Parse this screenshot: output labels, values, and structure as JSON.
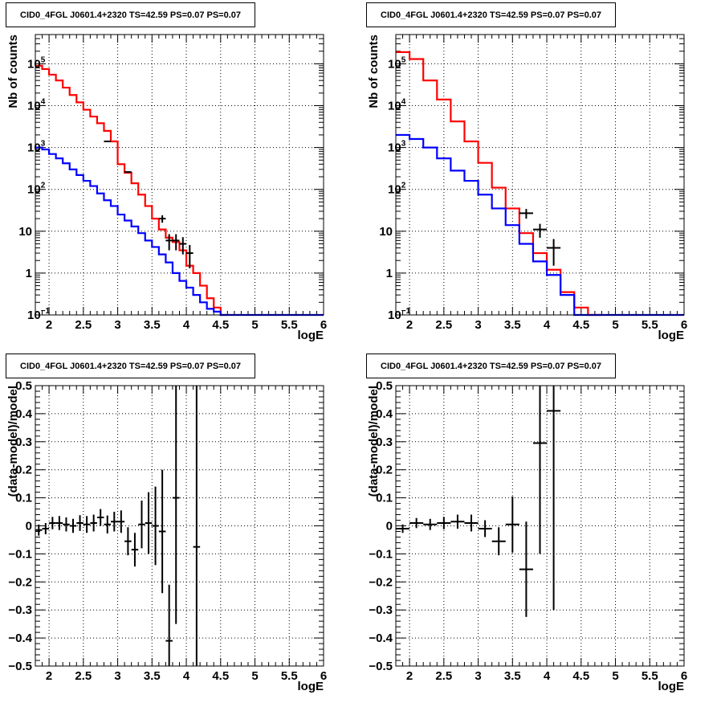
{
  "chart_data": [
    {
      "type": "line",
      "title": "CID0_4FGL J0601.4+2320 TS=42.59 PS=0.07 PS=0.07",
      "xlabel": "logE",
      "ylabel": "Nb of counts",
      "xlim": [
        1.8,
        6
      ],
      "ylim": [
        0.1,
        500000
      ],
      "ylog": true,
      "grid": true,
      "x_ticks": [
        "2",
        "2.5",
        "3",
        "3.5",
        "4",
        "4.5",
        "5",
        "5.5",
        "6"
      ],
      "y_ticks": [
        {
          "v": 0.1,
          "base": "10",
          "exp": "−1"
        },
        {
          "v": 1,
          "base": "1",
          "exp": ""
        },
        {
          "v": 10,
          "base": "10",
          "exp": ""
        },
        {
          "v": 100,
          "base": "10",
          "exp": "2"
        },
        {
          "v": 1000,
          "base": "10",
          "exp": "3"
        },
        {
          "v": 10000,
          "base": "10",
          "exp": "4"
        },
        {
          "v": 100000,
          "base": "10",
          "exp": "5"
        }
      ],
      "series": [
        {
          "color": "#ff0000",
          "kind": "step",
          "edges": [
            1.8,
            1.9,
            2.0,
            2.1,
            2.2,
            2.3,
            2.4,
            2.5,
            2.6,
            2.7,
            2.8,
            2.9,
            3.0,
            3.1,
            3.2,
            3.3,
            3.4,
            3.5,
            3.6,
            3.7,
            3.8,
            3.9,
            4.0,
            4.1,
            4.2,
            4.3,
            4.4,
            4.5,
            4.6
          ],
          "values": [
            90000,
            75000,
            55000,
            40000,
            27000,
            18000,
            12000,
            8000,
            5500,
            3800,
            2500,
            1400,
            400,
            250,
            140,
            75,
            40,
            20,
            11,
            7,
            5.5,
            3.5,
            1.5,
            1,
            0.5,
            0.25,
            0.15,
            0.1
          ]
        },
        {
          "color": "#0000ff",
          "kind": "step",
          "edges": [
            1.8,
            1.9,
            2.0,
            2.1,
            2.2,
            2.3,
            2.4,
            2.5,
            2.6,
            2.7,
            2.8,
            2.9,
            3.0,
            3.1,
            3.2,
            3.3,
            3.4,
            3.5,
            3.6,
            3.7,
            3.8,
            3.9,
            4.0,
            4.1,
            4.2,
            4.3,
            4.4,
            4.5,
            6.0
          ],
          "values": [
            1000,
            900,
            700,
            550,
            420,
            300,
            220,
            160,
            120,
            80,
            55,
            40,
            25,
            18,
            13,
            9,
            6,
            4.2,
            2.8,
            1.8,
            1,
            0.65,
            0.45,
            0.3,
            0.2,
            0.14,
            0.12,
            0.1
          ]
        },
        {
          "color": "#000000",
          "kind": "points",
          "points": [
            [
              2.85,
              1400,
              0.05,
              1.3
            ],
            [
              3.15,
              260,
              0.05,
              0.5
            ],
            [
              3.65,
              20,
              0.05,
              4
            ],
            [
              3.75,
              6,
              0.05,
              2.5
            ],
            [
              3.85,
              6,
              0.05,
              2.5
            ],
            [
              3.95,
              5,
              0.05,
              2.2
            ],
            [
              4.05,
              3,
              0.05,
              1.7
            ]
          ]
        }
      ]
    },
    {
      "type": "line",
      "title": "CID0_4FGL J0601.4+2320 TS=42.59 PS=0.07 PS=0.07",
      "xlabel": "logE",
      "ylabel": "Nb of counts",
      "xlim": [
        1.8,
        6
      ],
      "ylim": [
        0.1,
        500000
      ],
      "ylog": true,
      "grid": true,
      "x_ticks": [
        "2",
        "2.5",
        "3",
        "3.5",
        "4",
        "4.5",
        "5",
        "5.5",
        "6"
      ],
      "y_ticks": [
        {
          "v": 0.1,
          "base": "10",
          "exp": "−1"
        },
        {
          "v": 1,
          "base": "1",
          "exp": ""
        },
        {
          "v": 10,
          "base": "10",
          "exp": ""
        },
        {
          "v": 100,
          "base": "10",
          "exp": "2"
        },
        {
          "v": 1000,
          "base": "10",
          "exp": "3"
        },
        {
          "v": 10000,
          "base": "10",
          "exp": "4"
        },
        {
          "v": 100000,
          "base": "10",
          "exp": "5"
        }
      ],
      "series": [
        {
          "color": "#ff0000",
          "kind": "step",
          "edges": [
            1.8,
            2.0,
            2.2,
            2.4,
            2.6,
            2.8,
            3.0,
            3.2,
            3.4,
            3.6,
            3.8,
            4.0,
            4.2,
            4.4,
            4.6,
            4.8
          ],
          "values": [
            190000,
            130000,
            40000,
            14000,
            4200,
            1400,
            430,
            110,
            35,
            9,
            3,
            1.2,
            0.35,
            0.15,
            0.1
          ]
        },
        {
          "color": "#0000ff",
          "kind": "step",
          "edges": [
            1.8,
            2.0,
            2.2,
            2.4,
            2.6,
            2.8,
            3.0,
            3.2,
            3.4,
            3.6,
            3.8,
            4.0,
            4.2,
            4.4,
            6.0
          ],
          "values": [
            2000,
            1600,
            1000,
            550,
            280,
            160,
            75,
            35,
            14,
            5,
            1.9,
            0.9,
            0.3,
            0.1
          ]
        },
        {
          "color": "#000000",
          "kind": "points",
          "points": [
            [
              3.7,
              27,
              0.1,
              7
            ],
            [
              3.9,
              11,
              0.1,
              4
            ],
            [
              4.1,
              4,
              0.1,
              2.5
            ]
          ]
        }
      ]
    },
    {
      "type": "scatter",
      "title": "CID0_4FGL J0601.4+2320 TS=42.59 PS=0.07 PS=0.07",
      "xlabel": "logE",
      "ylabel": "(data-model)/model",
      "xlim": [
        1.8,
        6
      ],
      "ylim": [
        -0.5,
        0.5
      ],
      "ylog": false,
      "grid": true,
      "x_ticks": [
        "2",
        "2.5",
        "3",
        "3.5",
        "4",
        "4.5",
        "5",
        "5.5",
        "6"
      ],
      "y_ticks": [
        {
          "v": -0.5,
          "base": "−0.5",
          "exp": ""
        },
        {
          "v": -0.4,
          "base": "−0.4",
          "exp": ""
        },
        {
          "v": -0.3,
          "base": "−0.3",
          "exp": ""
        },
        {
          "v": -0.2,
          "base": "−0.2",
          "exp": ""
        },
        {
          "v": -0.1,
          "base": "−0.1",
          "exp": ""
        },
        {
          "v": 0,
          "base": "0",
          "exp": ""
        },
        {
          "v": 0.1,
          "base": "0.1",
          "exp": ""
        },
        {
          "v": 0.2,
          "base": "0.2",
          "exp": ""
        },
        {
          "v": 0.3,
          "base": "0.3",
          "exp": ""
        },
        {
          "v": 0.4,
          "base": "0.4",
          "exp": ""
        },
        {
          "v": 0.5,
          "base": "0.5",
          "exp": ""
        }
      ],
      "series": [
        {
          "color": "#000000",
          "kind": "points",
          "points": [
            [
              1.85,
              -0.015,
              0.05,
              0.02
            ],
            [
              1.95,
              -0.01,
              0.05,
              0.02
            ],
            [
              2.05,
              0.01,
              0.05,
              0.022
            ],
            [
              2.15,
              0.01,
              0.05,
              0.025
            ],
            [
              2.25,
              0.005,
              0.05,
              0.025
            ],
            [
              2.35,
              0.0,
              0.05,
              0.025
            ],
            [
              2.45,
              0.01,
              0.05,
              0.028
            ],
            [
              2.55,
              0.005,
              0.05,
              0.03
            ],
            [
              2.65,
              0.01,
              0.05,
              0.03
            ],
            [
              2.75,
              0.03,
              0.05,
              0.03
            ],
            [
              2.85,
              0.005,
              0.05,
              0.032
            ],
            [
              2.95,
              0.015,
              0.05,
              0.035
            ],
            [
              3.05,
              0.015,
              0.05,
              0.04
            ],
            [
              3.15,
              -0.055,
              0.05,
              0.05
            ],
            [
              3.25,
              -0.085,
              0.05,
              0.06
            ],
            [
              3.35,
              0.005,
              0.05,
              0.085
            ],
            [
              3.45,
              0.01,
              0.05,
              0.11
            ],
            [
              3.55,
              0.0,
              0.05,
              0.14
            ],
            [
              3.65,
              -0.02,
              0.05,
              0.22
            ],
            [
              3.75,
              -0.41,
              0.05,
              0.2
            ],
            [
              3.85,
              0.1,
              0.05,
              0.45
            ],
            [
              4.15,
              -0.075,
              0.05,
              0.8
            ]
          ]
        }
      ]
    },
    {
      "type": "scatter",
      "title": "CID0_4FGL J0601.4+2320 TS=42.59 PS=0.07 PS=0.07",
      "xlabel": "logE",
      "ylabel": "(data-model)/model",
      "xlim": [
        1.8,
        6
      ],
      "ylim": [
        -0.5,
        0.5
      ],
      "ylog": false,
      "grid": true,
      "x_ticks": [
        "2",
        "2.5",
        "3",
        "3.5",
        "4",
        "4.5",
        "5",
        "5.5",
        "6"
      ],
      "y_ticks": [
        {
          "v": -0.5,
          "base": "−0.5",
          "exp": ""
        },
        {
          "v": -0.4,
          "base": "−0.4",
          "exp": ""
        },
        {
          "v": -0.3,
          "base": "−0.3",
          "exp": ""
        },
        {
          "v": -0.2,
          "base": "−0.2",
          "exp": ""
        },
        {
          "v": -0.1,
          "base": "−0.1",
          "exp": ""
        },
        {
          "v": 0,
          "base": "0",
          "exp": ""
        },
        {
          "v": 0.1,
          "base": "0.1",
          "exp": ""
        },
        {
          "v": 0.2,
          "base": "0.2",
          "exp": ""
        },
        {
          "v": 0.3,
          "base": "0.3",
          "exp": ""
        },
        {
          "v": 0.4,
          "base": "0.4",
          "exp": ""
        },
        {
          "v": 0.5,
          "base": "0.5",
          "exp": ""
        }
      ],
      "series": [
        {
          "color": "#000000",
          "kind": "points",
          "points": [
            [
              1.9,
              -0.01,
              0.1,
              0.015
            ],
            [
              2.1,
              0.01,
              0.1,
              0.018
            ],
            [
              2.3,
              0.005,
              0.1,
              0.02
            ],
            [
              2.5,
              0.01,
              0.1,
              0.022
            ],
            [
              2.7,
              0.015,
              0.1,
              0.025
            ],
            [
              2.9,
              0.01,
              0.1,
              0.03
            ],
            [
              3.1,
              -0.01,
              0.1,
              0.03
            ],
            [
              3.3,
              -0.055,
              0.1,
              0.05
            ],
            [
              3.5,
              0.005,
              0.1,
              0.1
            ],
            [
              3.7,
              -0.155,
              0.1,
              0.17
            ],
            [
              3.9,
              0.295,
              0.1,
              0.395
            ],
            [
              4.1,
              0.41,
              0.1,
              0.71
            ]
          ]
        }
      ]
    }
  ]
}
